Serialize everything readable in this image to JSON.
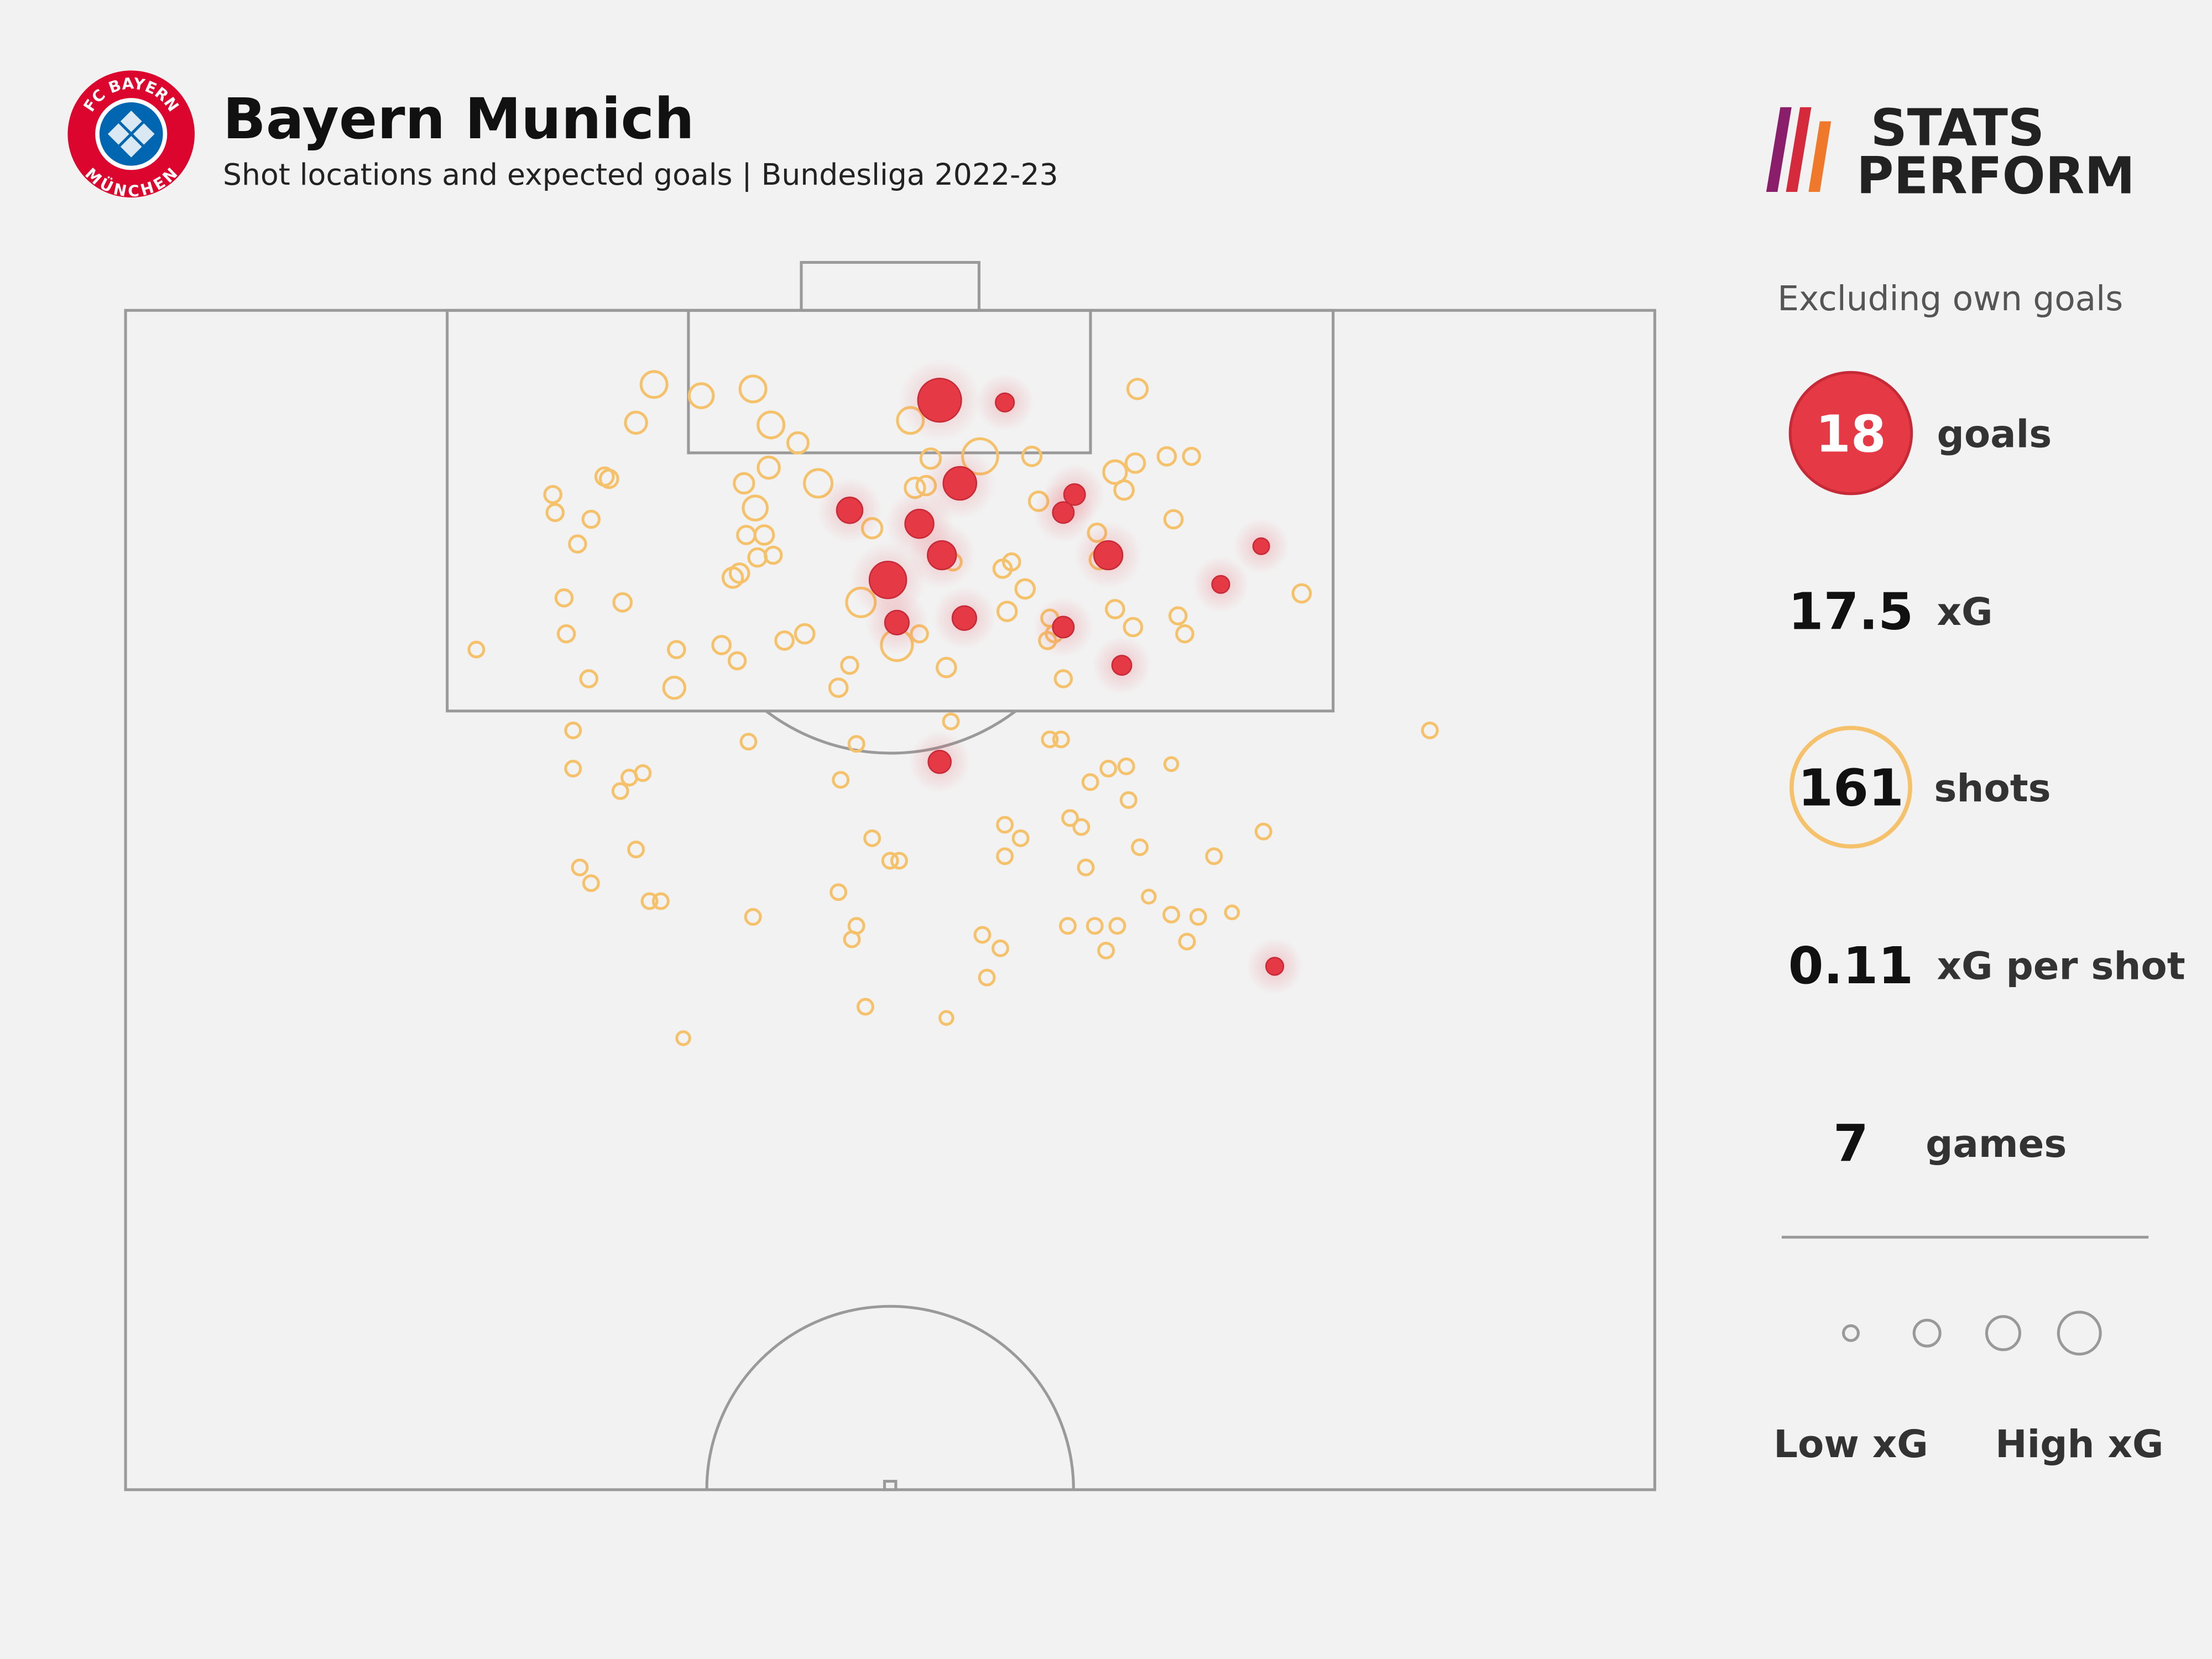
{
  "header": {
    "title": "Bayern Munich",
    "subtitle": "Shot locations and expected goals | Bundesliga 2022-23",
    "badge": [
      "FC BAYERN",
      "MÜNCHEN"
    ],
    "logo": [
      "STATS",
      "PERFORM"
    ]
  },
  "stats": {
    "note": "Excluding own goals",
    "items": [
      {
        "value": 18,
        "label": "goals"
      },
      {
        "value": 17.5,
        "label": "xG"
      },
      {
        "value": 161,
        "label": "shots"
      },
      {
        "value": 0.11,
        "label": "xG per shot"
      },
      {
        "value": 7,
        "label": "games"
      }
    ]
  },
  "chart_data": {
    "type": "scatter",
    "xlim": [
      0,
      68
    ],
    "ylim": [
      0,
      52.5
    ],
    "size_legend": {
      "values": [
        0.02,
        0.15,
        0.3,
        0.55
      ],
      "low": "Low xG",
      "high": "High xG"
    },
    "series": [
      {
        "color": "#e63946",
        "filled": true,
        "x": [
          36.2,
          39.1,
          37.1,
          32.2,
          35.3,
          42.2,
          41.7,
          36.3,
          43.7,
          33.9,
          50.5,
          48.7,
          34.3,
          37.3,
          41.7,
          44.3,
          36.2,
          51.1
        ],
        "y": [
          4.0,
          4.1,
          7.7,
          8.9,
          9.5,
          8.2,
          9.0,
          10.9,
          10.9,
          12.0,
          10.5,
          12.2,
          13.9,
          13.7,
          14.1,
          15.8,
          20.1,
          29.2
        ],
        "xg": [
          0.6,
          0.05,
          0.3,
          0.15,
          0.2,
          0.08,
          0.08,
          0.2,
          0.2,
          0.4,
          0.03,
          0.04,
          0.12,
          0.12,
          0.08,
          0.06,
          0.1,
          0.04
        ]
      },
      {
        "color": "#f5c26b",
        "filled": false,
        "x": [
          23.5,
          27.9,
          22.7,
          25.6,
          28.7,
          34.9,
          38.0,
          29.9,
          28.6,
          30.8,
          27.5,
          28.0,
          35.8,
          35.1,
          35.6,
          40.3,
          44.0,
          44.9,
          45.0,
          46.3,
          47.4,
          44.4,
          40.6,
          46.6,
          21.3,
          21.5,
          19.0,
          19.1,
          20.7,
          20.1,
          27.6,
          28.4,
          28.1,
          28.8,
          27.0,
          27.3,
          33.2,
          32.7,
          34.3,
          39.0,
          39.4,
          40.0,
          39.2,
          43.3,
          43.2,
          44.0,
          44.8,
          41.1,
          41.3,
          41.0,
          36.8,
          35.3,
          36.5,
          32.2,
          31.7,
          30.2,
          29.3,
          26.5,
          27.2,
          24.5,
          24.4,
          22.1,
          19.5,
          19.6,
          20.6,
          15.6,
          46.8,
          47.1,
          52.3,
          41.7,
          58.0,
          19.9,
          19.9,
          22.4,
          23.0,
          22.0,
          27.7,
          32.5,
          31.8,
          36.7,
          41.1,
          41.6,
          42.9,
          43.7,
          44.5,
          46.5,
          44.6,
          39.1,
          39.8,
          39.1,
          42.0,
          42.5,
          42.7,
          45.1,
          33.2,
          34.0,
          34.4,
          50.6,
          48.4,
          22.7,
          20.2,
          20.7,
          23.3,
          23.8,
          27.9,
          31.7,
          32.5,
          32.3,
          38.1,
          38.9,
          41.9,
          43.1,
          44.1,
          43.6,
          45.5,
          46.5,
          47.7,
          49.2,
          47.2,
          38.3,
          32.9,
          36.5,
          24.8
        ],
        "y": [
          3.3,
          3.5,
          5.0,
          3.8,
          5.1,
          4.9,
          6.5,
          5.9,
          7.0,
          7.7,
          7.7,
          8.8,
          6.6,
          7.9,
          7.8,
          6.5,
          7.2,
          6.8,
          3.5,
          6.5,
          6.5,
          8.0,
          8.5,
          9.3,
          7.4,
          7.5,
          8.2,
          9.0,
          9.3,
          10.4,
          10.0,
          10.0,
          11.0,
          10.9,
          11.9,
          11.7,
          9.7,
          13.0,
          14.9,
          11.5,
          11.2,
          12.4,
          13.4,
          11.1,
          9.9,
          13.3,
          14.1,
          13.7,
          14.4,
          14.7,
          11.2,
          14.4,
          15.9,
          15.8,
          16.8,
          14.4,
          14.7,
          14.9,
          15.6,
          15.1,
          16.8,
          13.0,
          12.8,
          14.4,
          16.4,
          15.1,
          13.6,
          14.4,
          12.6,
          16.4,
          18.7,
          18.7,
          20.4,
          20.8,
          20.6,
          21.4,
          19.2,
          19.3,
          20.9,
          18.3,
          19.1,
          19.1,
          21.0,
          20.4,
          20.3,
          20.2,
          21.8,
          22.9,
          23.5,
          24.3,
          22.6,
          23.0,
          24.8,
          23.9,
          23.5,
          24.5,
          24.5,
          23.2,
          24.3,
          24.0,
          24.8,
          25.5,
          26.3,
          26.3,
          27.0,
          25.9,
          27.4,
          28.0,
          27.8,
          28.4,
          27.4,
          27.4,
          27.4,
          28.5,
          26.1,
          26.9,
          27.0,
          26.8,
          28.1,
          29.7,
          31.0,
          31.5,
          32.4
        ],
        "xg": [
          0.15,
          0.15,
          0.08,
          0.12,
          0.15,
          0.15,
          0.35,
          0.07,
          0.08,
          0.18,
          0.06,
          0.12,
          0.06,
          0.06,
          0.05,
          0.05,
          0.1,
          0.05,
          0.06,
          0.04,
          0.03,
          0.05,
          0.05,
          0.04,
          0.04,
          0.04,
          0.03,
          0.03,
          0.03,
          0.03,
          0.04,
          0.05,
          0.04,
          0.03,
          0.06,
          0.05,
          0.06,
          0.2,
          0.25,
          0.04,
          0.03,
          0.05,
          0.05,
          0.05,
          0.04,
          0.04,
          0.04,
          0.03,
          0.03,
          0.03,
          0.03,
          0.03,
          0.05,
          0.03,
          0.04,
          0.05,
          0.04,
          0.04,
          0.03,
          0.03,
          0.08,
          0.04,
          0.03,
          0.03,
          0.03,
          0.02,
          0.03,
          0.03,
          0.04,
          0.03,
          0.02,
          0.02,
          0.02,
          0.02,
          0.02,
          0.02,
          0.02,
          0.02,
          0.02,
          0.02,
          0.02,
          0.02,
          0.02,
          0.02,
          0.02,
          0.01,
          0.02,
          0.02,
          0.02,
          0.02,
          0.02,
          0.02,
          0.02,
          0.02,
          0.02,
          0.02,
          0.02,
          0.02,
          0.02,
          0.02,
          0.02,
          0.02,
          0.02,
          0.02,
          0.02,
          0.02,
          0.02,
          0.02,
          0.02,
          0.02,
          0.02,
          0.02,
          0.02,
          0.02,
          0.01,
          0.02,
          0.02,
          0.01,
          0.02,
          0.02,
          0.02,
          0.01,
          0.01
        ]
      }
    ]
  }
}
